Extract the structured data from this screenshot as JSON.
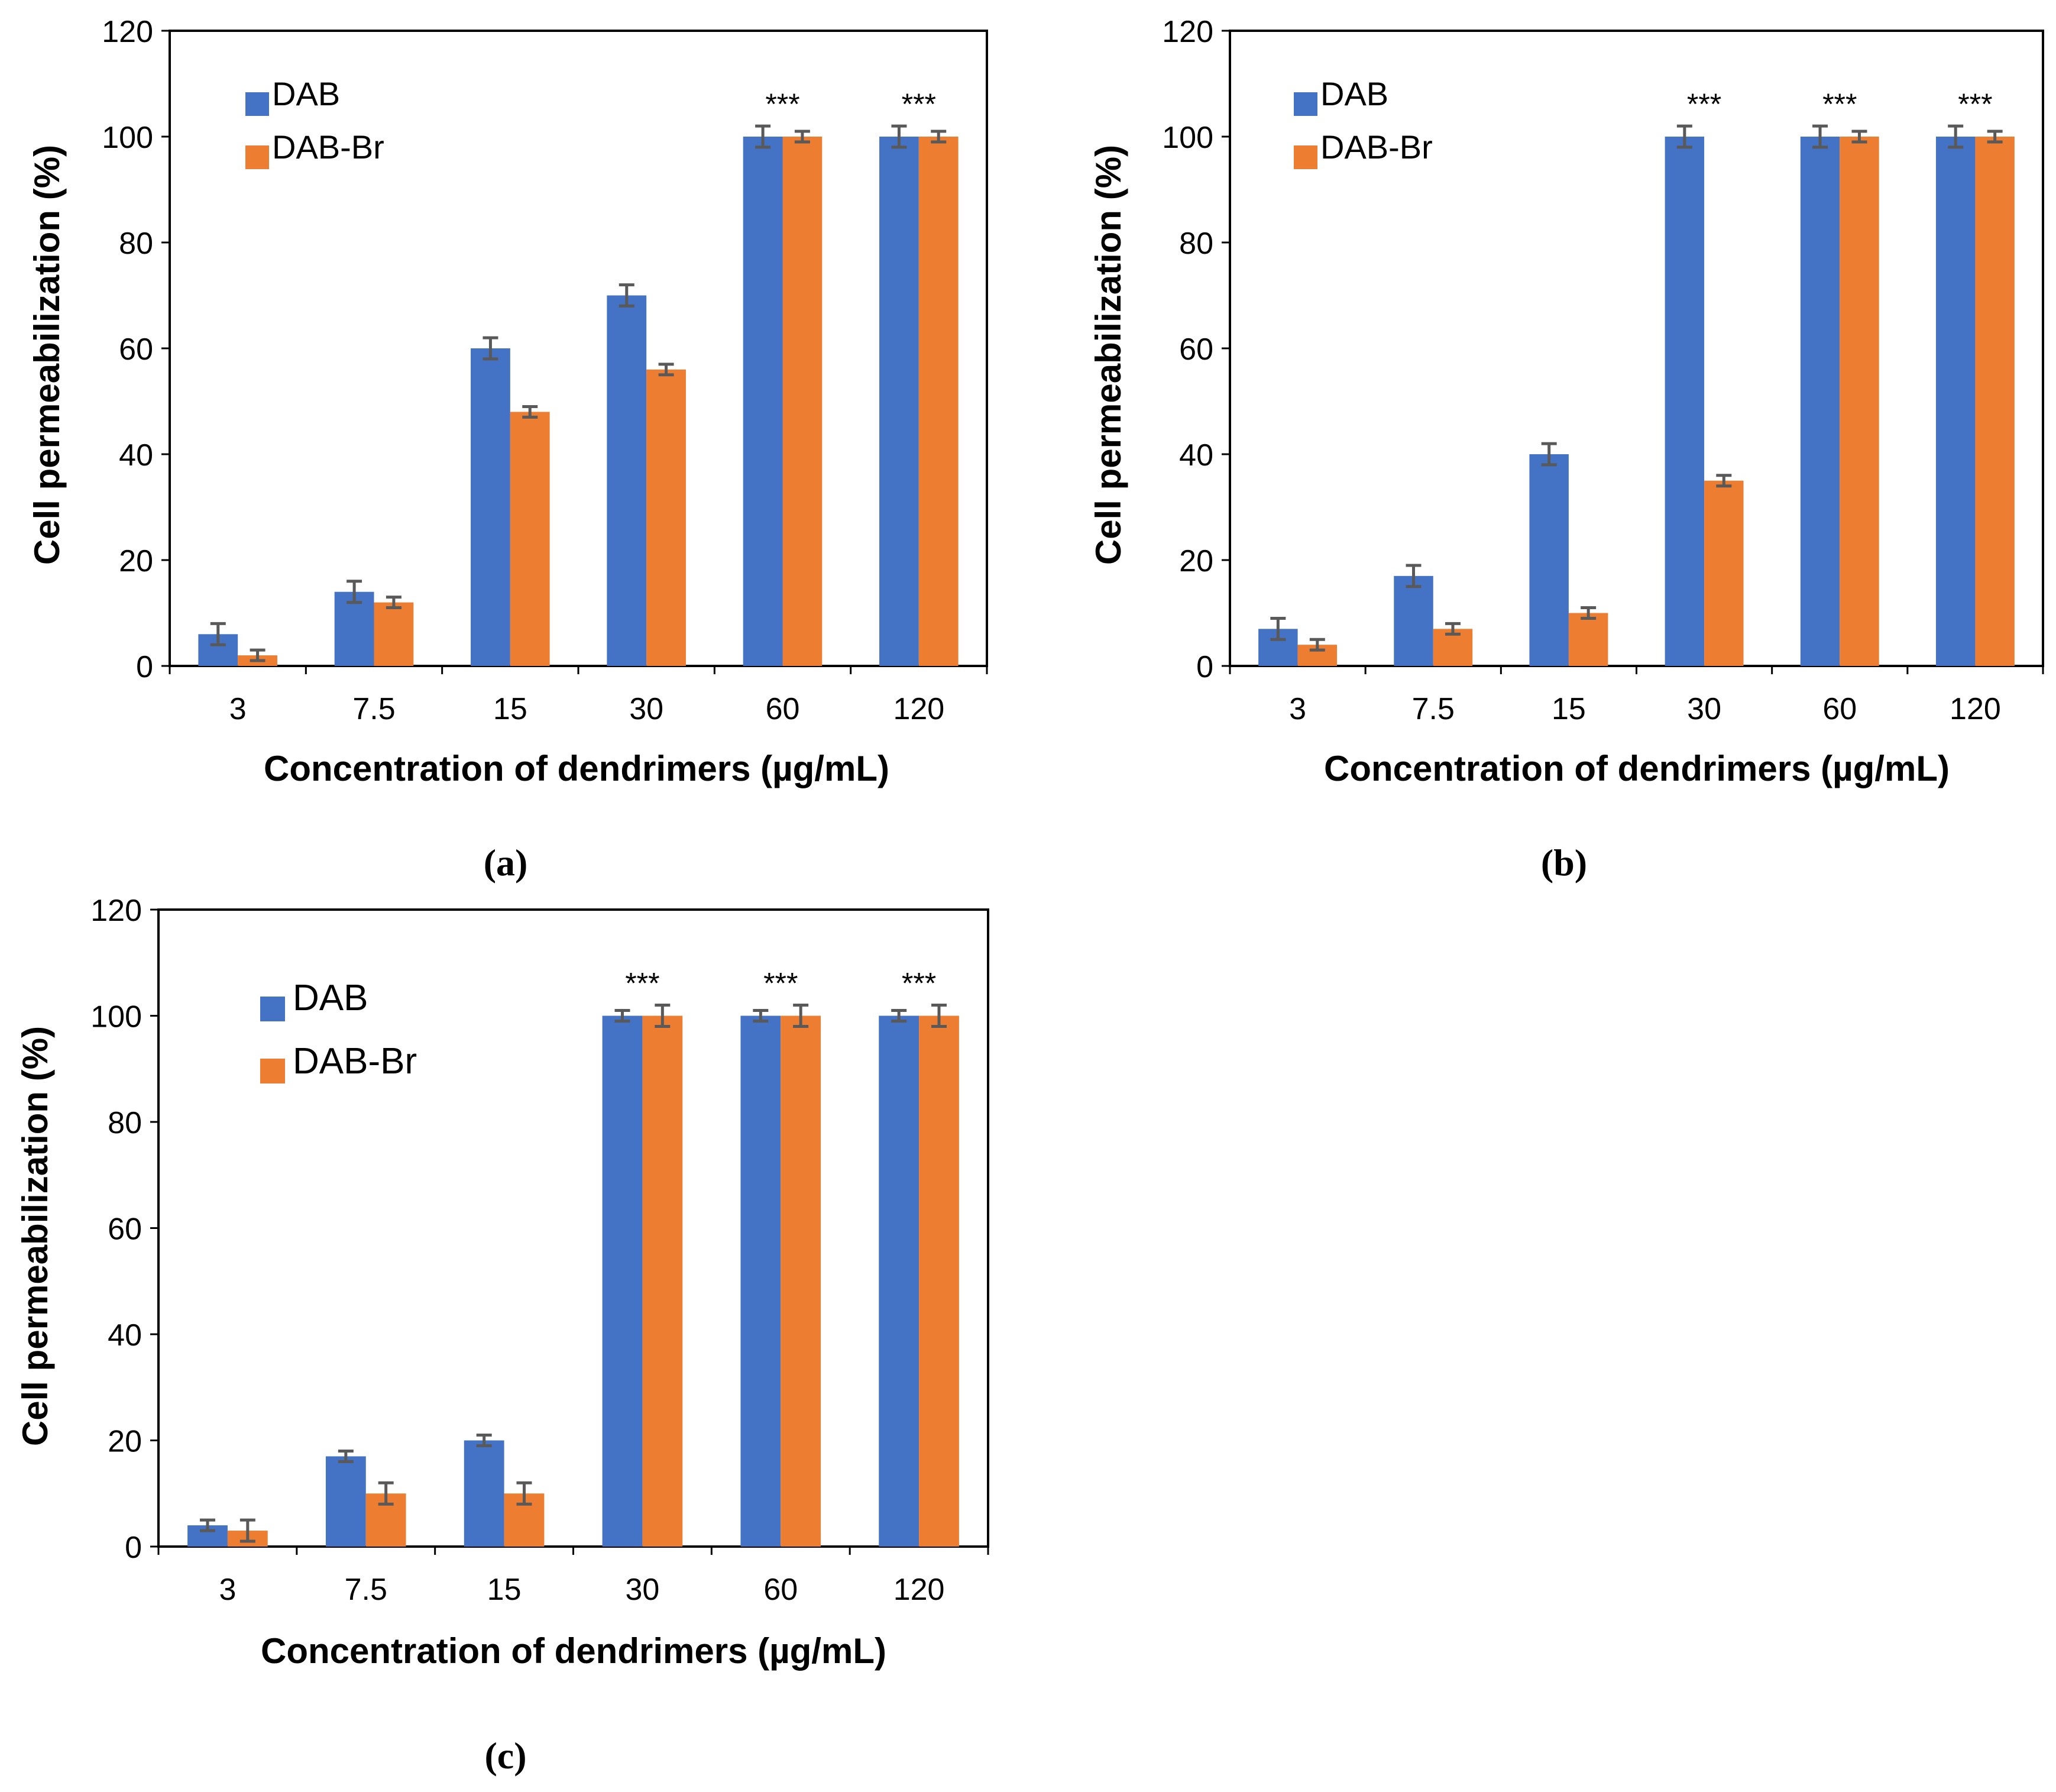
{
  "colors": {
    "DAB": "#4472C4",
    "DAB-Br": "#ED7D31",
    "error_bar": "#595959",
    "axis": "#000000"
  },
  "chart_data": [
    {
      "type": "bar",
      "panel_label": "(a)",
      "categories": [
        "3",
        "7.5",
        "15",
        "30",
        "60",
        "120"
      ],
      "series": [
        {
          "name": "DAB",
          "values": [
            6,
            14,
            60,
            70,
            100,
            100
          ],
          "errors": [
            2,
            2,
            2,
            2,
            2,
            2
          ]
        },
        {
          "name": "DAB-Br",
          "values": [
            2,
            12,
            48,
            56,
            100,
            100
          ],
          "errors": [
            1,
            1,
            1,
            1,
            1,
            1
          ]
        }
      ],
      "significance": [
        "",
        "",
        "",
        "",
        "***",
        "***"
      ],
      "xlabel": "Concentration of dendrimers (µg/mL)",
      "ylabel": "Cell permeabilization (%)",
      "ylim": [
        0,
        120
      ],
      "yticks": [
        "0",
        "20",
        "40",
        "60",
        "80",
        "100",
        "120"
      ],
      "legend": "top-left",
      "grid": false
    },
    {
      "type": "bar",
      "panel_label": "(b)",
      "categories": [
        "3",
        "7.5",
        "15",
        "30",
        "60",
        "120"
      ],
      "series": [
        {
          "name": "DAB",
          "values": [
            7,
            17,
            40,
            100,
            100,
            100
          ],
          "errors": [
            2,
            2,
            2,
            2,
            2,
            2
          ]
        },
        {
          "name": "DAB-Br",
          "values": [
            4,
            7,
            10,
            35,
            100,
            100
          ],
          "errors": [
            1,
            1,
            1,
            1,
            1,
            1
          ]
        }
      ],
      "significance": [
        "",
        "",
        "",
        "***",
        "***",
        "***"
      ],
      "xlabel": "Concentration of dendrimers (µg/mL)",
      "ylabel": "Cell permeabilization (%)",
      "ylim": [
        0,
        120
      ],
      "yticks": [
        "0",
        "20",
        "40",
        "60",
        "80",
        "100",
        "120"
      ],
      "legend": "top-left",
      "grid": false
    },
    {
      "type": "bar",
      "panel_label": "(c)",
      "categories": [
        "3",
        "7.5",
        "15",
        "30",
        "60",
        "120"
      ],
      "series": [
        {
          "name": "DAB",
          "values": [
            4,
            17,
            20,
            100,
            100,
            100
          ],
          "errors": [
            1,
            1,
            1,
            1,
            1,
            1
          ]
        },
        {
          "name": "DAB-Br",
          "values": [
            3,
            10,
            10,
            100,
            100,
            100
          ],
          "errors": [
            2,
            2,
            2,
            2,
            2,
            2
          ]
        }
      ],
      "significance": [
        "",
        "",
        "",
        "***",
        "***",
        "***"
      ],
      "xlabel": "Concentration of dendrimers (µg/mL)",
      "ylabel": "Cell permeabilization (%)",
      "ylim": [
        0,
        120
      ],
      "yticks": [
        "0",
        "20",
        "40",
        "60",
        "80",
        "100",
        "120"
      ],
      "legend": "top-left",
      "grid": false
    }
  ]
}
